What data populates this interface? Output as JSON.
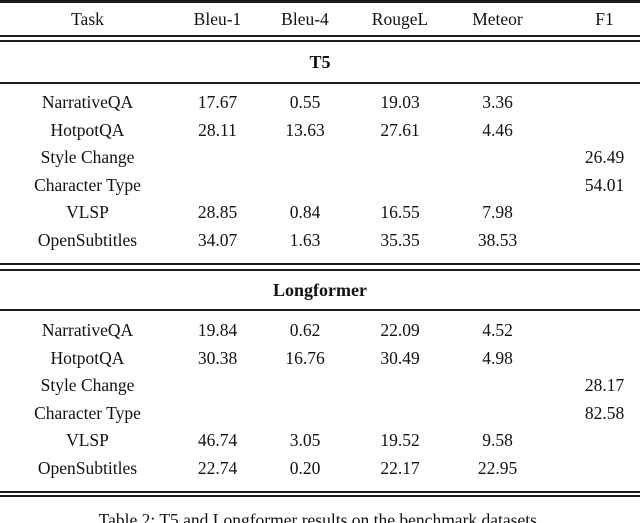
{
  "table": {
    "columns": [
      "Task",
      "Bleu-1",
      "Bleu-4",
      "RougeL",
      "Meteor",
      "F1"
    ],
    "sections": [
      {
        "title": "T5",
        "rows": [
          {
            "task": "NarrativeQA",
            "bleu1": "17.67",
            "bleu4": "0.55",
            "rougel": "19.03",
            "meteor": "3.36",
            "f1": ""
          },
          {
            "task": "HotpotQA",
            "bleu1": "28.11",
            "bleu4": "13.63",
            "rougel": "27.61",
            "meteor": "4.46",
            "f1": ""
          },
          {
            "task": "Style Change",
            "bleu1": "",
            "bleu4": "",
            "rougel": "",
            "meteor": "",
            "f1": "26.49"
          },
          {
            "task": "Character Type",
            "bleu1": "",
            "bleu4": "",
            "rougel": "",
            "meteor": "",
            "f1": "54.01"
          },
          {
            "task": "VLSP",
            "bleu1": "28.85",
            "bleu4": "0.84",
            "rougel": "16.55",
            "meteor": "7.98",
            "f1": ""
          },
          {
            "task": "OpenSubtitles",
            "bleu1": "34.07",
            "bleu4": "1.63",
            "rougel": "35.35",
            "meteor": "38.53",
            "f1": ""
          }
        ]
      },
      {
        "title": "Longformer",
        "rows": [
          {
            "task": "NarrativeQA",
            "bleu1": "19.84",
            "bleu4": "0.62",
            "rougel": "22.09",
            "meteor": "4.52",
            "f1": ""
          },
          {
            "task": "HotpotQA",
            "bleu1": "30.38",
            "bleu4": "16.76",
            "rougel": "30.49",
            "meteor": "4.98",
            "f1": ""
          },
          {
            "task": "Style Change",
            "bleu1": "",
            "bleu4": "",
            "rougel": "",
            "meteor": "",
            "f1": "28.17"
          },
          {
            "task": "Character Type",
            "bleu1": "",
            "bleu4": "",
            "rougel": "",
            "meteor": "",
            "f1": "82.58"
          },
          {
            "task": "VLSP",
            "bleu1": "46.74",
            "bleu4": "3.05",
            "rougel": "19.52",
            "meteor": "9.58",
            "f1": ""
          },
          {
            "task": "OpenSubtitles",
            "bleu1": "22.74",
            "bleu4": "0.20",
            "rougel": "22.17",
            "meteor": "22.95",
            "f1": ""
          }
        ]
      }
    ],
    "caption": "Table 2: T5 and Longformer results on the benchmark datasets."
  },
  "colors": {
    "background": "#ffffff",
    "text": "#111111",
    "rule": "#1c1c1c"
  }
}
